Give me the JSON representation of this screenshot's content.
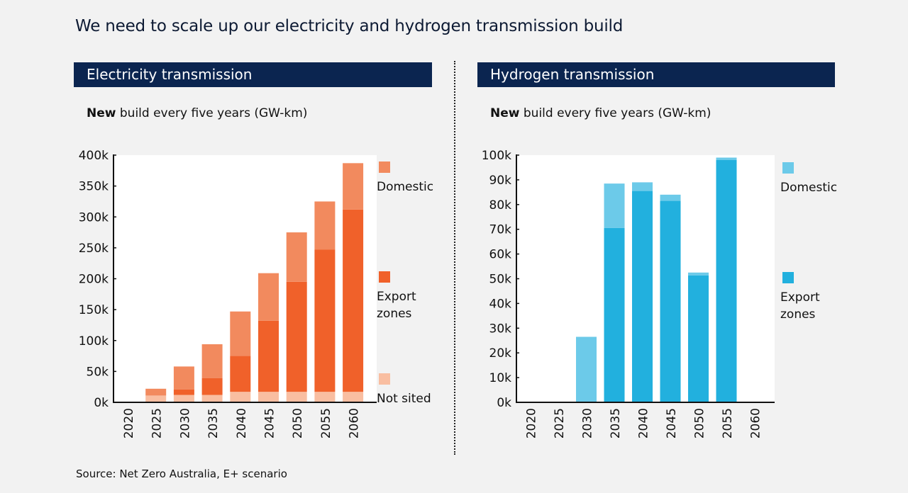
{
  "title": "We need to scale up our electricity and hydrogen transmission build",
  "source": "Source: Net Zero Australia, E+ scenario",
  "panels": [
    {
      "header": "Electricity transmission",
      "subtitle_bold": "New",
      "subtitle_rest": " build every five years (GW-km)"
    },
    {
      "header": "Hydrogen transmission",
      "subtitle_bold": "New",
      "subtitle_rest": " build every five years (GW-km)"
    }
  ],
  "chart_data": [
    {
      "type": "bar",
      "stacked": true,
      "title": "Electricity transmission",
      "ylabel": "New build every five years (GW-km)",
      "categories": [
        "2020",
        "2025",
        "2030",
        "2035",
        "2040",
        "2045",
        "2050",
        "2055",
        "2060"
      ],
      "ylim": [
        0,
        400000
      ],
      "yticks": [
        0,
        50000,
        100000,
        150000,
        200000,
        250000,
        300000,
        350000,
        400000
      ],
      "ytick_labels": [
        "0k",
        "50k",
        "100k",
        "150k",
        "200k",
        "250k",
        "300k",
        "350k",
        "400k"
      ],
      "grid": false,
      "legend_position": "right",
      "series": [
        {
          "name": "Not sited",
          "color": "#f9bea1",
          "values": [
            1000,
            11000,
            12000,
            12000,
            17000,
            17000,
            17000,
            17000,
            17000
          ]
        },
        {
          "name": "Export zones",
          "color": "#f0612a",
          "values": [
            0,
            0,
            9000,
            27000,
            58000,
            115000,
            178000,
            230000,
            295000
          ]
        },
        {
          "name": "Domestic",
          "color": "#f28a5e",
          "values": [
            0,
            11000,
            37000,
            55000,
            72000,
            77000,
            80000,
            78000,
            75000
          ]
        }
      ]
    },
    {
      "type": "bar",
      "stacked": true,
      "title": "Hydrogen transmission",
      "ylabel": "New build every five years (GW-km)",
      "categories": [
        "2020",
        "2025",
        "2030",
        "2035",
        "2040",
        "2045",
        "2050",
        "2055",
        "2060"
      ],
      "ylim": [
        0,
        100000
      ],
      "yticks": [
        0,
        10000,
        20000,
        30000,
        40000,
        50000,
        60000,
        70000,
        80000,
        90000,
        100000
      ],
      "ytick_labels": [
        "0k",
        "10k",
        "20k",
        "30k",
        "40k",
        "50k",
        "60k",
        "70k",
        "80k",
        "90k",
        "100k"
      ],
      "grid": false,
      "legend_position": "right",
      "series": [
        {
          "name": "Export zones",
          "color": "#22b0de",
          "values": [
            0,
            0,
            0,
            70500,
            85500,
            81500,
            51300,
            98000,
            0
          ]
        },
        {
          "name": "Domestic",
          "color": "#6ccae9",
          "values": [
            0,
            0,
            26500,
            18000,
            3500,
            2500,
            1200,
            1000,
            0
          ]
        }
      ]
    }
  ],
  "legends": [
    [
      {
        "label_lines": [
          "Domestic"
        ],
        "color": "#f28a5e"
      },
      {
        "label_lines": [
          "Export",
          "zones"
        ],
        "color": "#f0612a"
      },
      {
        "label_lines": [
          "Not sited"
        ],
        "color": "#f9bea1"
      }
    ],
    [
      {
        "label_lines": [
          "Domestic"
        ],
        "color": "#6ccae9"
      },
      {
        "label_lines": [
          "Export",
          "zones"
        ],
        "color": "#22b0de"
      }
    ]
  ]
}
